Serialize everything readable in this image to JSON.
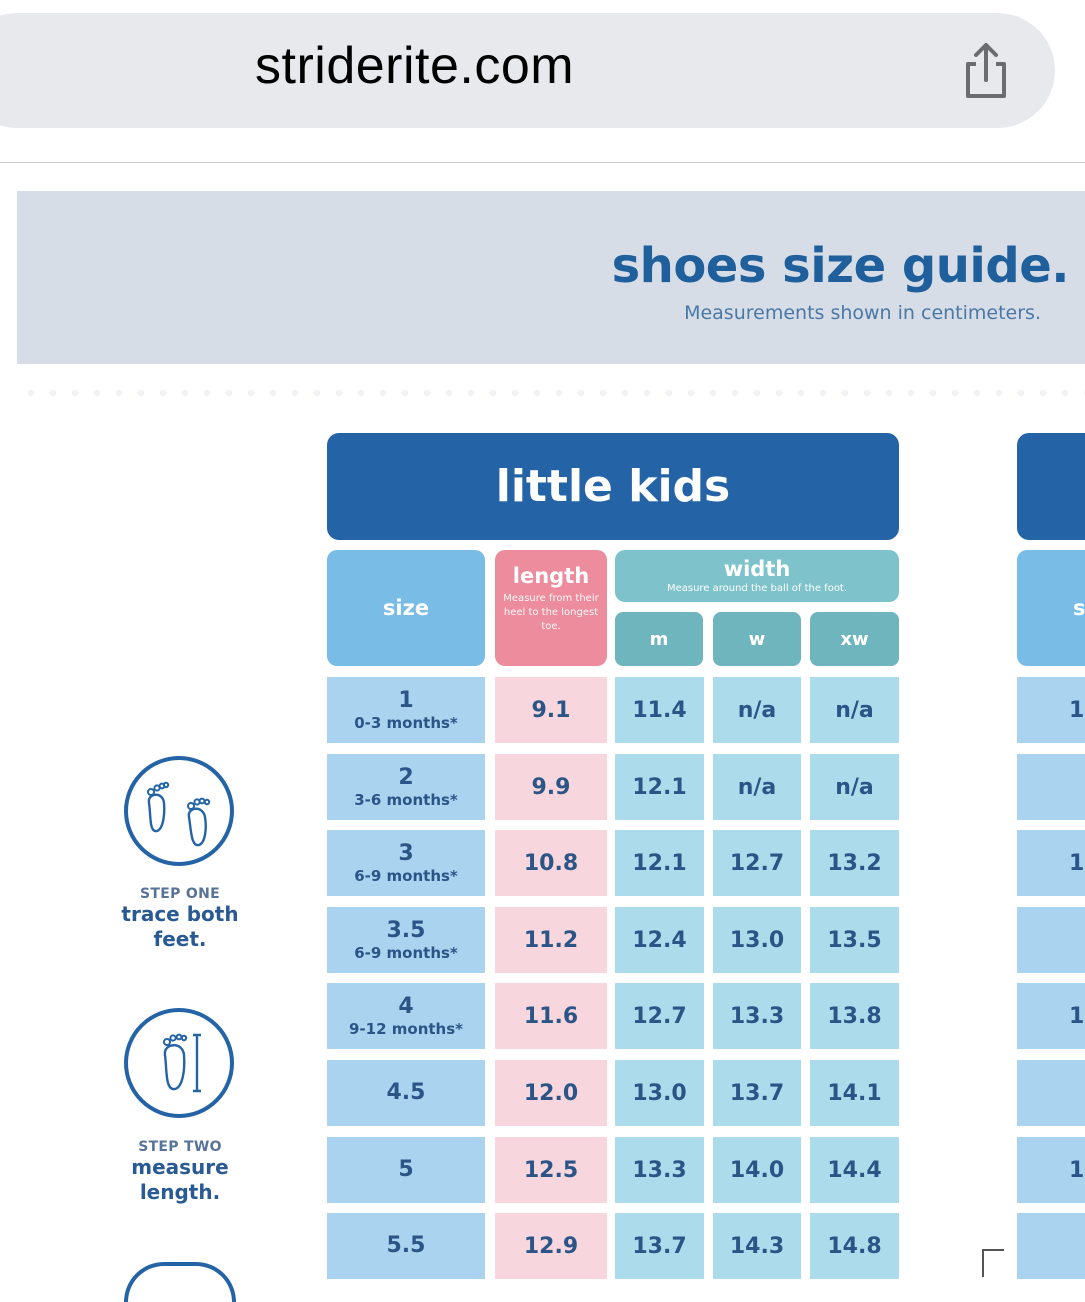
{
  "browser": {
    "url": "striderite.com"
  },
  "page": {
    "title": "shoes size guide.",
    "subtitle": "Measurements shown in centimeters."
  },
  "table": {
    "category": "little kids",
    "headers": {
      "size": "size",
      "length": "length",
      "length_note": "Measure from their heel to the longest toe.",
      "width": "width",
      "width_note": "Measure around the ball of the foot.",
      "m": "m",
      "w": "w",
      "xw": "xw"
    },
    "rows": [
      {
        "size": "1",
        "age": "0-3 months*",
        "length": "9.1",
        "m": "11.4",
        "w": "n/a",
        "xw": "n/a"
      },
      {
        "size": "2",
        "age": "3-6 months*",
        "length": "9.9",
        "m": "12.1",
        "w": "n/a",
        "xw": "n/a"
      },
      {
        "size": "3",
        "age": "6-9 months*",
        "length": "10.8",
        "m": "12.1",
        "w": "12.7",
        "xw": "13.2"
      },
      {
        "size": "3.5",
        "age": "6-9 months*",
        "length": "11.2",
        "m": "12.4",
        "w": "13.0",
        "xw": "13.5"
      },
      {
        "size": "4",
        "age": "9-12 months*",
        "length": "11.6",
        "m": "12.7",
        "w": "13.3",
        "xw": "13.8"
      },
      {
        "size": "4.5",
        "age": "",
        "length": "12.0",
        "m": "13.0",
        "w": "13.7",
        "xw": "14.1"
      },
      {
        "size": "5",
        "age": "",
        "length": "12.5",
        "m": "13.3",
        "w": "14.0",
        "xw": "14.4"
      },
      {
        "size": "5.5",
        "age": "",
        "length": "12.9",
        "m": "13.7",
        "w": "14.3",
        "xw": "14.8"
      }
    ]
  },
  "right_column": {
    "header_fragment": "s",
    "cells": [
      "1(",
      "",
      "1",
      "",
      "1",
      "",
      "1",
      ""
    ]
  },
  "steps": [
    {
      "kicker": "STEP ONE",
      "text": "trace both feet."
    },
    {
      "kicker": "STEP TWO",
      "text": "measure length."
    }
  ],
  "colors": {
    "brand_blue": "#2464a6",
    "size_header": "#79bce6",
    "length_header": "#ec8c9c",
    "width_header": "#7ec3cb"
  },
  "icons": [
    "share-icon",
    "feet-icon",
    "ruler-foot-icon"
  ]
}
